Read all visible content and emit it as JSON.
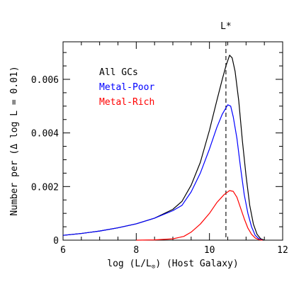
{
  "chart_data": {
    "type": "line",
    "xlabel_main": "log (L/L",
    "xlabel_sub": "⊙",
    "xlabel_tail": ") (Host Galaxy)",
    "ylabel": "Number per (Δ log L = 0.01)",
    "xlim": [
      6,
      12
    ],
    "ylim": [
      0,
      0.0074
    ],
    "x_ticks": [
      6,
      8,
      10,
      12
    ],
    "x_tick_labels": [
      "6",
      "8",
      "10",
      "12"
    ],
    "y_ticks": [
      0,
      0.002,
      0.004,
      0.006
    ],
    "y_tick_labels": [
      "0",
      "0.002",
      "0.004",
      "0.006"
    ],
    "reference_line": {
      "x": 10.45,
      "label": "L*",
      "style": "dashed"
    },
    "legend_position": "top-left",
    "series": [
      {
        "name": "All GCs",
        "color": "#000000",
        "points": [
          [
            6.0,
            0.00018
          ],
          [
            6.5,
            0.00025
          ],
          [
            7.0,
            0.00034
          ],
          [
            7.5,
            0.00046
          ],
          [
            8.0,
            0.00061
          ],
          [
            8.5,
            0.00082
          ],
          [
            9.0,
            0.00115
          ],
          [
            9.25,
            0.00145
          ],
          [
            9.5,
            0.00205
          ],
          [
            9.75,
            0.0029
          ],
          [
            10.0,
            0.0041
          ],
          [
            10.2,
            0.0052
          ],
          [
            10.35,
            0.006
          ],
          [
            10.45,
            0.0065
          ],
          [
            10.55,
            0.0069
          ],
          [
            10.62,
            0.0068
          ],
          [
            10.7,
            0.0063
          ],
          [
            10.8,
            0.0052
          ],
          [
            10.9,
            0.0037
          ],
          [
            11.0,
            0.0024
          ],
          [
            11.1,
            0.0013
          ],
          [
            11.2,
            0.0006
          ],
          [
            11.3,
            0.00022
          ],
          [
            11.4,
            5e-05
          ],
          [
            11.5,
            0.0
          ]
        ]
      },
      {
        "name": "Metal-Poor",
        "color": "#0000ff",
        "points": [
          [
            6.0,
            0.00018
          ],
          [
            6.5,
            0.00025
          ],
          [
            7.0,
            0.00034
          ],
          [
            7.5,
            0.00046
          ],
          [
            8.0,
            0.00061
          ],
          [
            8.5,
            0.00082
          ],
          [
            9.0,
            0.0011
          ],
          [
            9.25,
            0.0013
          ],
          [
            9.5,
            0.0018
          ],
          [
            9.75,
            0.0025
          ],
          [
            10.0,
            0.0034
          ],
          [
            10.2,
            0.0042
          ],
          [
            10.35,
            0.0047
          ],
          [
            10.5,
            0.00505
          ],
          [
            10.58,
            0.005
          ],
          [
            10.65,
            0.0046
          ],
          [
            10.75,
            0.0038
          ],
          [
            10.85,
            0.0027
          ],
          [
            10.95,
            0.0017
          ],
          [
            11.05,
            0.001
          ],
          [
            11.15,
            0.0005
          ],
          [
            11.25,
            0.00018
          ],
          [
            11.35,
            5e-05
          ],
          [
            11.45,
            0.0
          ]
        ]
      },
      {
        "name": "Metal-Rich",
        "color": "#ff0000",
        "points": [
          [
            8.0,
            0.0
          ],
          [
            8.5,
            1e-05
          ],
          [
            9.0,
            5e-05
          ],
          [
            9.3,
            0.00014
          ],
          [
            9.5,
            0.0003
          ],
          [
            9.75,
            0.0006
          ],
          [
            10.0,
            0.001
          ],
          [
            10.2,
            0.0014
          ],
          [
            10.4,
            0.0017
          ],
          [
            10.55,
            0.00185
          ],
          [
            10.65,
            0.00182
          ],
          [
            10.75,
            0.0016
          ],
          [
            10.85,
            0.0012
          ],
          [
            10.95,
            0.0008
          ],
          [
            11.05,
            0.00045
          ],
          [
            11.15,
            0.00022
          ],
          [
            11.25,
            8e-05
          ],
          [
            11.35,
            2e-05
          ],
          [
            11.45,
            0.0
          ]
        ]
      }
    ]
  }
}
